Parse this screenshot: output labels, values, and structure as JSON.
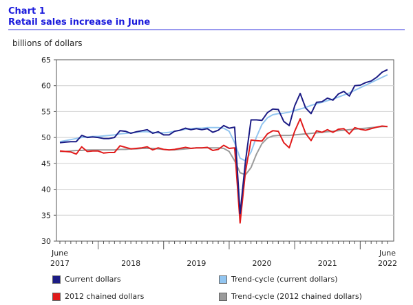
{
  "header": {
    "chart_label": "Chart 1",
    "title": "Retail sales increase in June",
    "unit_label": "billions of dollars"
  },
  "colors": {
    "title": "#1a1adc",
    "current": "#1c1c85",
    "trend_current": "#92c5f0",
    "chained": "#e11b1b",
    "trend_chained": "#9b9b9b"
  },
  "chart_data": {
    "type": "line",
    "title": "Retail sales increase in June",
    "ylabel": "billions of dollars",
    "ylim": [
      30,
      65
    ],
    "yticks": [
      30,
      35,
      40,
      45,
      50,
      55,
      60,
      65
    ],
    "start": "2017-06",
    "end": "2022-06",
    "x_axis_labels": [
      {
        "month": 0,
        "top": "June",
        "bottom": "2017"
      },
      {
        "month": 13,
        "bottom": "2018"
      },
      {
        "month": 25,
        "bottom": "2019"
      },
      {
        "month": 37,
        "bottom": "2020"
      },
      {
        "month": 49,
        "bottom": "2021"
      },
      {
        "month": 60,
        "top": "June",
        "bottom": "2022"
      }
    ],
    "series": [
      {
        "key": "current",
        "name": "Current dollars",
        "color": "#1c1c85",
        "width": 2,
        "values": [
          49.0,
          49.1,
          49.2,
          49.2,
          50.4,
          50.0,
          50.1,
          50.0,
          49.8,
          49.8,
          50.0,
          51.3,
          51.2,
          50.8,
          51.1,
          51.3,
          51.5,
          50.8,
          51.1,
          50.5,
          50.5,
          51.2,
          51.4,
          51.8,
          51.5,
          51.7,
          51.5,
          51.7,
          51.0,
          51.4,
          52.3,
          51.8,
          52.0,
          35.3,
          45.5,
          53.4,
          53.4,
          53.3,
          54.8,
          55.5,
          55.4,
          53.1,
          52.3,
          56.1,
          58.5,
          55.7,
          54.6,
          56.8,
          56.9,
          57.6,
          57.2,
          58.4,
          58.9,
          58.0,
          60.0,
          60.1,
          60.6,
          60.9,
          61.6,
          62.6,
          63.1
        ]
      },
      {
        "key": "trend_current",
        "name": "Trend-cycle (current dollars)",
        "color": "#92c5f0",
        "width": 2,
        "values": [
          49.2,
          49.4,
          49.6,
          49.8,
          50.0,
          50.1,
          50.2,
          50.2,
          50.3,
          50.4,
          50.5,
          50.7,
          50.8,
          50.9,
          51.0,
          51.1,
          51.1,
          51.0,
          50.9,
          50.9,
          51.0,
          51.2,
          51.4,
          51.6,
          51.7,
          51.8,
          51.8,
          51.9,
          51.9,
          51.9,
          51.8,
          51.2,
          49.0,
          46.0,
          45.5,
          47.2,
          50.1,
          52.5,
          53.8,
          54.4,
          54.6,
          54.7,
          54.9,
          55.2,
          55.5,
          55.8,
          56.2,
          56.5,
          56.8,
          57.1,
          57.4,
          57.8,
          58.2,
          58.6,
          59.1,
          59.6,
          60.1,
          60.6,
          61.1,
          61.6,
          62.1
        ]
      },
      {
        "key": "chained",
        "name": "2012 chained dollars",
        "color": "#e11b1b",
        "width": 2,
        "values": [
          47.4,
          47.3,
          47.2,
          46.8,
          48.2,
          47.3,
          47.4,
          47.4,
          47.0,
          47.1,
          47.1,
          48.4,
          48.1,
          47.8,
          47.9,
          48.0,
          48.2,
          47.6,
          48.0,
          47.7,
          47.6,
          47.7,
          47.9,
          48.1,
          47.9,
          48.0,
          48.0,
          48.1,
          47.5,
          47.7,
          48.5,
          47.9,
          48.0,
          33.5,
          43.5,
          49.5,
          49.4,
          49.3,
          50.7,
          51.3,
          51.2,
          49.0,
          48.0,
          51.2,
          53.6,
          50.8,
          49.4,
          51.3,
          51.0,
          51.5,
          51.0,
          51.6,
          51.7,
          50.7,
          51.9,
          51.6,
          51.4,
          51.7,
          52.0,
          52.2,
          52.1
        ]
      },
      {
        "key": "trend_chained",
        "name": "Trend-cycle (2012 chained dollars)",
        "color": "#9b9b9b",
        "width": 2,
        "values": [
          47.3,
          47.3,
          47.4,
          47.5,
          47.5,
          47.6,
          47.6,
          47.6,
          47.6,
          47.6,
          47.6,
          47.7,
          47.7,
          47.8,
          47.8,
          47.9,
          47.9,
          47.9,
          47.8,
          47.7,
          47.6,
          47.6,
          47.7,
          47.8,
          47.9,
          48.0,
          48.0,
          48.0,
          48.0,
          48.0,
          47.9,
          47.3,
          45.5,
          43.2,
          42.8,
          44.2,
          46.8,
          48.8,
          49.9,
          50.3,
          50.4,
          50.4,
          50.4,
          50.5,
          50.6,
          50.7,
          50.8,
          50.9,
          51.0,
          51.1,
          51.2,
          51.3,
          51.4,
          51.5,
          51.6,
          51.7,
          51.8,
          51.9,
          52.0,
          52.1,
          52.1
        ]
      }
    ]
  },
  "legend": {
    "items": [
      {
        "key": "current",
        "label": "Current dollars"
      },
      {
        "key": "trend_current",
        "label": "Trend-cycle (current dollars)"
      },
      {
        "key": "chained",
        "label": "2012 chained dollars"
      },
      {
        "key": "trend_chained",
        "label": "Trend-cycle (2012 chained dollars)"
      }
    ]
  }
}
